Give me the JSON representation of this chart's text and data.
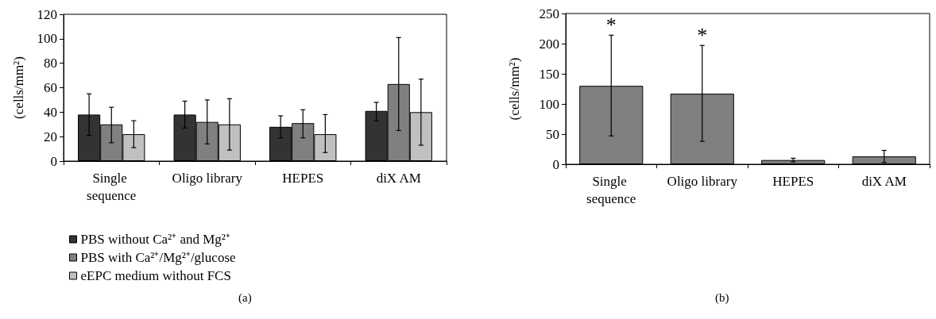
{
  "chart_data": [
    {
      "type": "bar",
      "title": "(a)",
      "ylabel": "(cells/mm²)",
      "categories": [
        "Single sequence",
        "Oligo library",
        "HEPES",
        "diX AM"
      ],
      "series": [
        {
          "name": "PBS without Ca²⁺ and Mg²⁺",
          "color": "#333333",
          "values": [
            38,
            38,
            28,
            41
          ],
          "errors": [
            [
              21,
              55
            ],
            [
              27,
              49
            ],
            [
              19,
              37
            ],
            [
              33,
              48
            ]
          ]
        },
        {
          "name": "PBS with Ca²⁺/Mg²⁺/glucose",
          "color": "#808080",
          "values": [
            30,
            32,
            31,
            63
          ],
          "errors": [
            [
              15,
              44
            ],
            [
              14,
              50
            ],
            [
              19,
              42
            ],
            [
              25,
              101
            ]
          ]
        },
        {
          "name": "eEPC medium without FCS",
          "color": "#c0c0c0",
          "values": [
            22,
            30,
            22,
            40
          ],
          "errors": [
            [
              11,
              33
            ],
            [
              9,
              51
            ],
            [
              7,
              38
            ],
            [
              13,
              67
            ]
          ]
        }
      ],
      "ylim": [
        0,
        120
      ],
      "yticks": [
        0,
        20,
        40,
        60,
        80,
        100,
        120
      ],
      "grid": false,
      "legend": "bottom left"
    },
    {
      "type": "bar",
      "title": "(b)",
      "ylabel": "(cells/mm²)",
      "categories": [
        "Single sequence",
        "Oligo library",
        "HEPES",
        "diX AM"
      ],
      "series": [
        {
          "color": "#808080",
          "values": [
            130,
            117,
            7,
            13
          ],
          "errors": [
            [
              47,
              214
            ],
            [
              38,
              197
            ],
            [
              4,
              10
            ],
            [
              3,
              23
            ]
          ]
        }
      ],
      "annotations": [
        {
          "text": "*",
          "x": "Single sequence",
          "y": 214
        },
        {
          "text": "*",
          "x": "Oligo library",
          "y": 197
        }
      ],
      "ylim": [
        0,
        250
      ],
      "yticks": [
        0,
        50,
        100,
        150,
        200,
        250
      ],
      "grid": false
    }
  ]
}
